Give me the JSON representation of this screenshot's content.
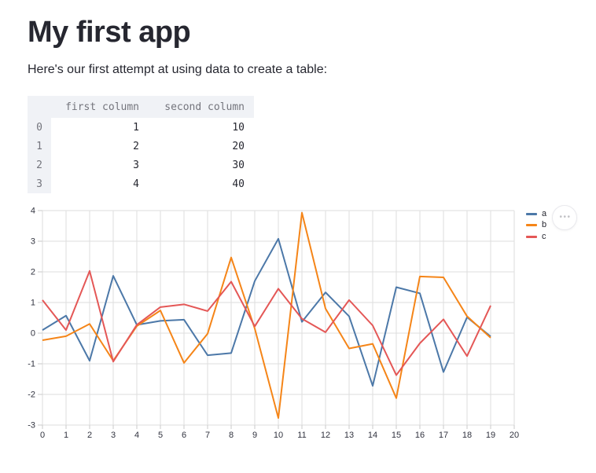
{
  "app": {
    "title": "My first app",
    "intro": "Here's our first attempt at using data to create a table:"
  },
  "table": {
    "index_header": "",
    "columns": [
      "first column",
      "second column"
    ],
    "index": [
      "0",
      "1",
      "2",
      "3"
    ],
    "rows": [
      [
        "1",
        "10"
      ],
      [
        "2",
        "20"
      ],
      [
        "3",
        "30"
      ],
      [
        "4",
        "40"
      ]
    ]
  },
  "chart_data": {
    "type": "line",
    "title": "",
    "xlabel": "",
    "ylabel": "",
    "x": [
      0,
      1,
      2,
      3,
      4,
      5,
      6,
      7,
      8,
      9,
      10,
      11,
      12,
      13,
      14,
      15,
      16,
      17,
      18,
      19
    ],
    "series": [
      {
        "name": "a",
        "color": "#4c78a8",
        "values": [
          0.1,
          0.57,
          -0.9,
          1.87,
          0.27,
          0.4,
          0.44,
          -0.72,
          -0.65,
          1.7,
          3.08,
          0.37,
          1.33,
          0.55,
          -1.72,
          1.5,
          1.3,
          -1.27,
          0.52,
          -0.11
        ]
      },
      {
        "name": "b",
        "color": "#f58518",
        "values": [
          -0.23,
          -0.1,
          0.3,
          -0.9,
          0.23,
          0.74,
          -0.97,
          -0.02,
          2.47,
          0.15,
          -2.77,
          3.93,
          0.8,
          -0.5,
          -0.35,
          -2.12,
          1.85,
          1.82,
          0.55,
          -0.15
        ]
      },
      {
        "name": "c",
        "color": "#e45756",
        "values": [
          1.08,
          0.1,
          2.03,
          -0.93,
          0.27,
          0.85,
          0.94,
          0.72,
          1.68,
          0.22,
          1.45,
          0.47,
          0.03,
          1.08,
          0.25,
          -1.37,
          -0.33,
          0.45,
          -0.75,
          0.9
        ]
      }
    ],
    "xlim": [
      0,
      20
    ],
    "ylim": [
      -3,
      4
    ],
    "x_ticks": [
      0,
      1,
      2,
      3,
      4,
      5,
      6,
      7,
      8,
      9,
      10,
      11,
      12,
      13,
      14,
      15,
      16,
      17,
      18,
      19,
      20
    ],
    "y_ticks": [
      -3,
      -2,
      -1,
      0,
      1,
      2,
      3,
      4
    ],
    "grid": true,
    "legend_position": "right",
    "grid_color": "#dddddd",
    "tick_color": "#c9c9c9",
    "axis_label_color": "#31333f"
  },
  "chart_menu": {
    "dots": "•••"
  }
}
